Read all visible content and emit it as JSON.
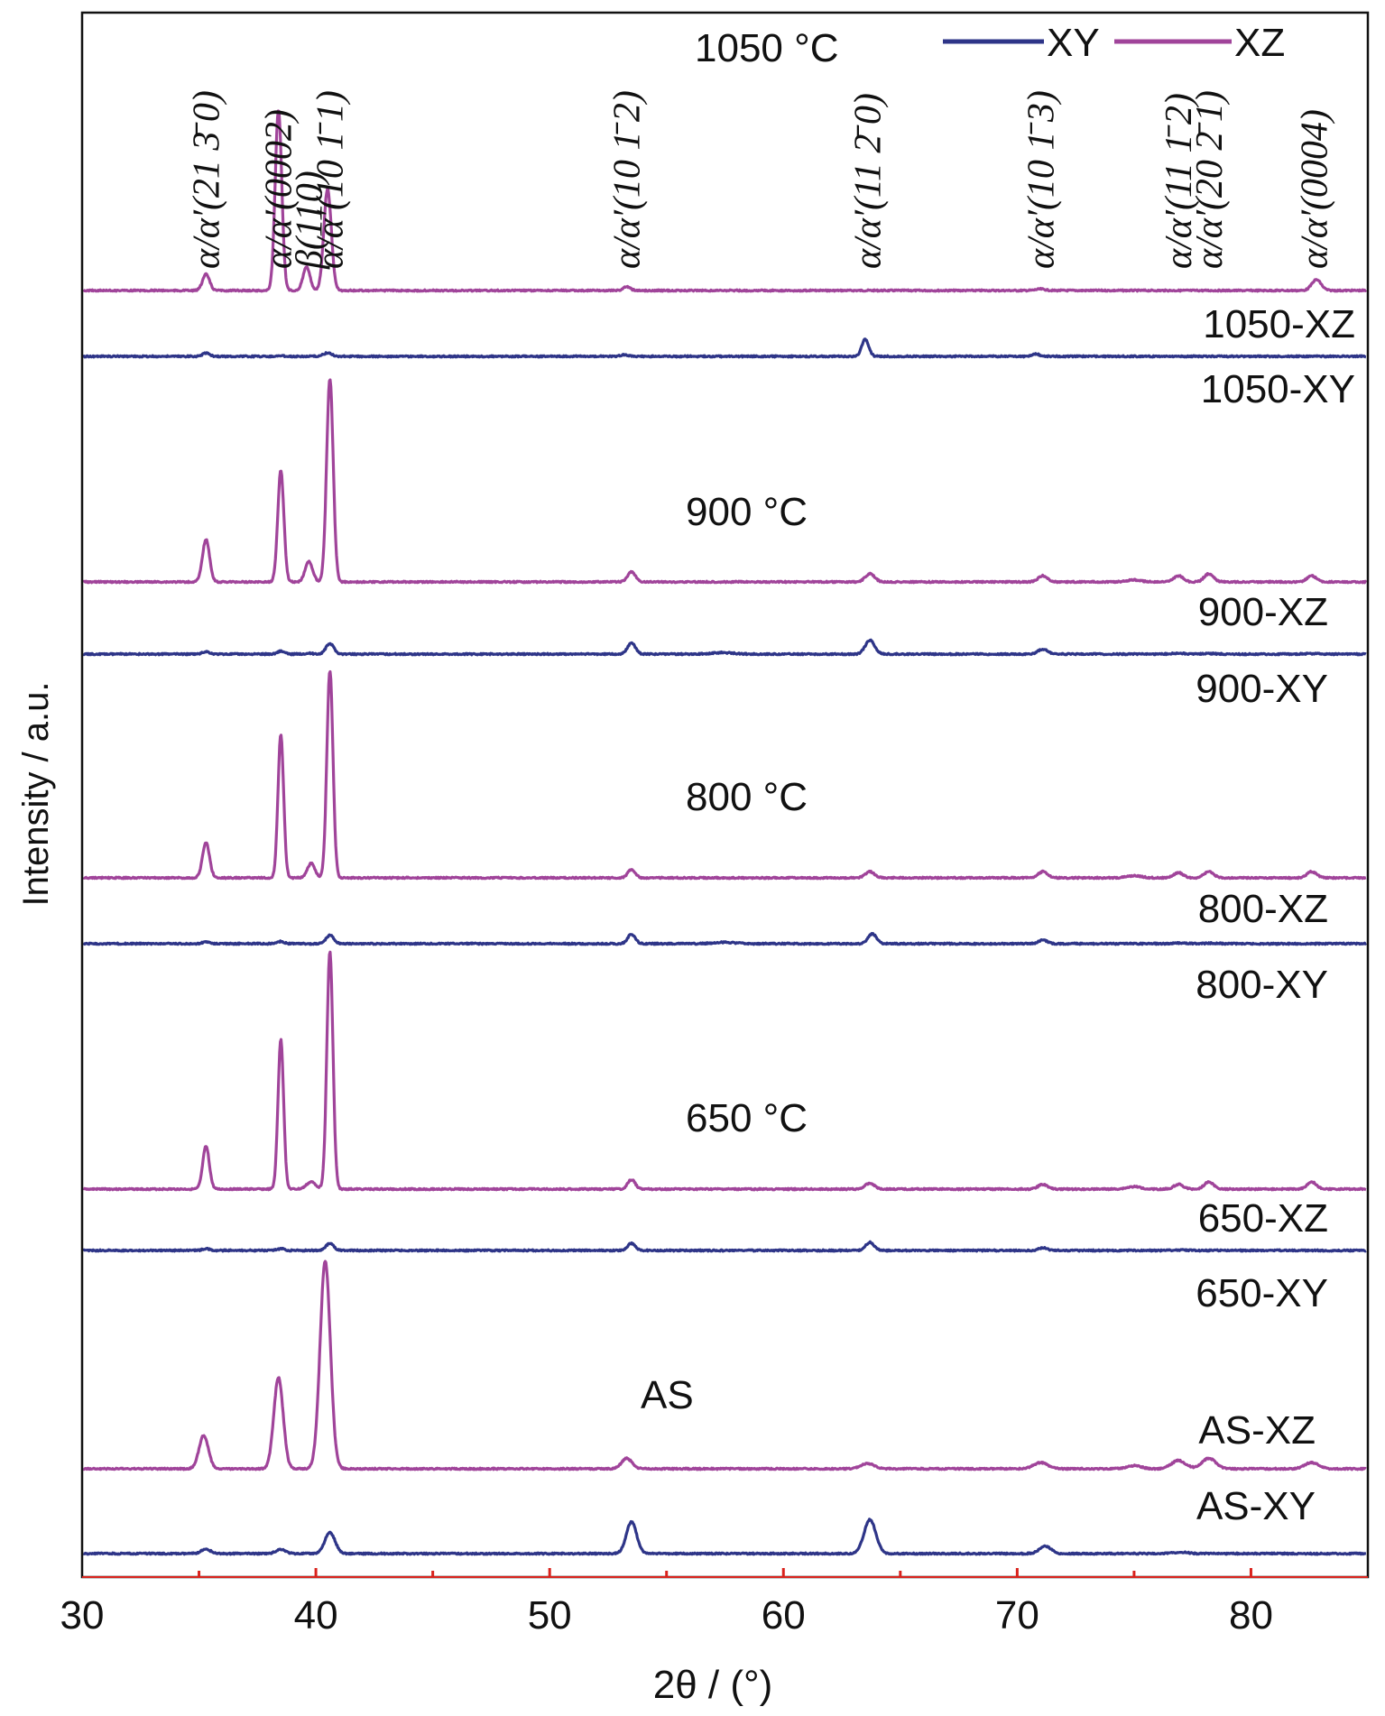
{
  "chart_data": {
    "type": "line",
    "title": "",
    "xlabel": "2θ / (°)",
    "ylabel": "Intensity / a.u.",
    "xlim": [
      30,
      85
    ],
    "x_ticks": [
      30,
      40,
      50,
      60,
      70,
      80
    ],
    "x_tick_labels": [
      "30",
      "40",
      "50",
      "60",
      "70",
      "80"
    ],
    "legend": {
      "position": "top-right",
      "entries": [
        {
          "name": "XY",
          "color": "#2e3588"
        },
        {
          "name": "XZ",
          "color": "#a0449a"
        }
      ]
    },
    "colors": {
      "XY": "#2e3588",
      "XZ": "#a0449a",
      "axis": "#111111",
      "tick_marks": "#d9231d"
    },
    "phase_labels": [
      {
        "text": "α/α′(21 3̄ 0)",
        "x": 35.3
      },
      {
        "text": "α/α′(0002)",
        "x": 38.4
      },
      {
        "text": "β(110)",
        "x": 39.7
      },
      {
        "text": "α/α′(10 1̄ 1)",
        "x": 40.6
      },
      {
        "text": "α/α′(10 1̄ 2)",
        "x": 53.3
      },
      {
        "text": "α/α′(11 2̄ 0)",
        "x": 63.6
      },
      {
        "text": "α/α′(10 1̄ 3)",
        "x": 71.0
      },
      {
        "text": "α/α′(11 1̄ 2)",
        "x": 76.9
      },
      {
        "text": "α/α′(20 2̄ 1)",
        "x": 78.2
      },
      {
        "text": "α/α′(0004)",
        "x": 82.7
      }
    ],
    "groups": [
      {
        "label": "1050 °C",
        "xz_label": "1050-XZ",
        "xy_label": "1050-XY"
      },
      {
        "label": "900 °C",
        "xz_label": "900-XZ",
        "xy_label": "900-XY"
      },
      {
        "label": "800 °C",
        "xz_label": "800-XZ",
        "xy_label": "800-XY"
      },
      {
        "label": "650 °C",
        "xz_label": "650-XZ",
        "xy_label": "650-XY"
      },
      {
        "label": "AS",
        "xz_label": "AS-XZ",
        "xy_label": "AS-XY"
      }
    ],
    "series": [
      {
        "name": "1050-XZ",
        "color": "#a0449a",
        "peaks": [
          [
            35.3,
            0.09,
            0.15
          ],
          [
            38.4,
            1.0,
            0.14
          ],
          [
            39.6,
            0.13,
            0.15
          ],
          [
            40.5,
            0.56,
            0.16
          ],
          [
            53.3,
            0.02,
            0.15
          ],
          [
            71.0,
            0.008,
            0.2
          ],
          [
            82.8,
            0.06,
            0.2
          ]
        ]
      },
      {
        "name": "1050-XY",
        "color": "#2e3588",
        "peaks": [
          [
            35.3,
            0.05,
            0.15
          ],
          [
            38.5,
            0.008,
            0.15
          ],
          [
            40.5,
            0.05,
            0.18
          ],
          [
            53.2,
            0.025,
            0.15
          ],
          [
            63.5,
            0.25,
            0.15
          ],
          [
            70.8,
            0.035,
            0.15
          ]
        ]
      },
      {
        "name": "900-XZ",
        "color": "#a0449a",
        "peaks": [
          [
            35.3,
            0.21,
            0.15
          ],
          [
            38.5,
            0.55,
            0.13
          ],
          [
            39.7,
            0.1,
            0.16
          ],
          [
            40.6,
            1.0,
            0.14
          ],
          [
            53.5,
            0.05,
            0.16
          ],
          [
            63.7,
            0.04,
            0.2
          ],
          [
            71.1,
            0.03,
            0.2
          ],
          [
            75.0,
            0.01,
            0.3
          ],
          [
            76.9,
            0.03,
            0.2
          ],
          [
            78.2,
            0.04,
            0.2
          ],
          [
            82.6,
            0.03,
            0.2
          ]
        ]
      },
      {
        "name": "900-XY",
        "color": "#2e3588",
        "peaks": [
          [
            35.3,
            0.05,
            0.15
          ],
          [
            38.5,
            0.06,
            0.15
          ],
          [
            39.7,
            0.015,
            0.2
          ],
          [
            40.6,
            0.21,
            0.17
          ],
          [
            53.5,
            0.22,
            0.17
          ],
          [
            57.4,
            0.03,
            0.45
          ],
          [
            63.7,
            0.28,
            0.2
          ],
          [
            71.1,
            0.1,
            0.2
          ],
          [
            76.9,
            0.015,
            0.3
          ],
          [
            78.3,
            0.01,
            0.3
          ],
          [
            82.6,
            0.01,
            0.3
          ]
        ]
      },
      {
        "name": "800-XZ",
        "color": "#a0449a",
        "peaks": [
          [
            35.3,
            0.17,
            0.15
          ],
          [
            38.5,
            0.69,
            0.12
          ],
          [
            39.8,
            0.07,
            0.16
          ],
          [
            40.6,
            1.0,
            0.13
          ],
          [
            53.5,
            0.04,
            0.16
          ],
          [
            63.7,
            0.03,
            0.2
          ],
          [
            71.1,
            0.03,
            0.2
          ],
          [
            75.0,
            0.01,
            0.3
          ],
          [
            76.9,
            0.025,
            0.2
          ],
          [
            78.2,
            0.03,
            0.2
          ],
          [
            82.6,
            0.03,
            0.2
          ]
        ]
      },
      {
        "name": "800-XY",
        "color": "#2e3588",
        "peaks": [
          [
            35.3,
            0.04,
            0.15
          ],
          [
            38.5,
            0.05,
            0.14
          ],
          [
            40.6,
            0.19,
            0.16
          ],
          [
            53.5,
            0.21,
            0.16
          ],
          [
            57.5,
            0.03,
            0.45
          ],
          [
            63.8,
            0.22,
            0.18
          ],
          [
            71.1,
            0.08,
            0.18
          ],
          [
            77.0,
            0.015,
            0.3
          ],
          [
            78.3,
            0.01,
            0.3
          ]
        ]
      },
      {
        "name": "650-XZ",
        "color": "#a0449a",
        "peaks": [
          [
            35.3,
            0.18,
            0.14
          ],
          [
            38.5,
            0.63,
            0.12
          ],
          [
            39.8,
            0.03,
            0.2
          ],
          [
            40.6,
            1.0,
            0.13
          ],
          [
            53.5,
            0.04,
            0.16
          ],
          [
            63.7,
            0.025,
            0.2
          ],
          [
            71.1,
            0.02,
            0.2
          ],
          [
            75.0,
            0.01,
            0.3
          ],
          [
            76.9,
            0.02,
            0.2
          ],
          [
            78.2,
            0.03,
            0.2
          ],
          [
            82.6,
            0.03,
            0.2
          ]
        ]
      },
      {
        "name": "650-XY",
        "color": "#2e3588",
        "peaks": [
          [
            35.3,
            0.04,
            0.15
          ],
          [
            38.5,
            0.04,
            0.14
          ],
          [
            40.6,
            0.16,
            0.16
          ],
          [
            53.5,
            0.16,
            0.16
          ],
          [
            63.7,
            0.18,
            0.18
          ],
          [
            71.1,
            0.06,
            0.18
          ],
          [
            77.0,
            0.01,
            0.3
          ]
        ]
      },
      {
        "name": "AS-XZ",
        "color": "#a0449a",
        "peaks": [
          [
            35.2,
            0.16,
            0.2
          ],
          [
            38.4,
            0.44,
            0.2
          ],
          [
            40.4,
            1.0,
            0.22
          ],
          [
            53.3,
            0.05,
            0.22
          ],
          [
            63.6,
            0.025,
            0.3
          ],
          [
            71.0,
            0.03,
            0.3
          ],
          [
            75.0,
            0.015,
            0.3
          ],
          [
            76.9,
            0.04,
            0.3
          ],
          [
            78.2,
            0.05,
            0.3
          ],
          [
            82.6,
            0.03,
            0.3
          ]
        ]
      },
      {
        "name": "AS-XY",
        "color": "#2e3588",
        "peaks": [
          [
            35.3,
            0.06,
            0.2
          ],
          [
            38.5,
            0.06,
            0.2
          ],
          [
            40.6,
            0.29,
            0.22
          ],
          [
            53.5,
            0.44,
            0.22
          ],
          [
            63.7,
            0.47,
            0.25
          ],
          [
            71.2,
            0.1,
            0.25
          ],
          [
            77.0,
            0.02,
            0.3
          ]
        ]
      }
    ]
  }
}
